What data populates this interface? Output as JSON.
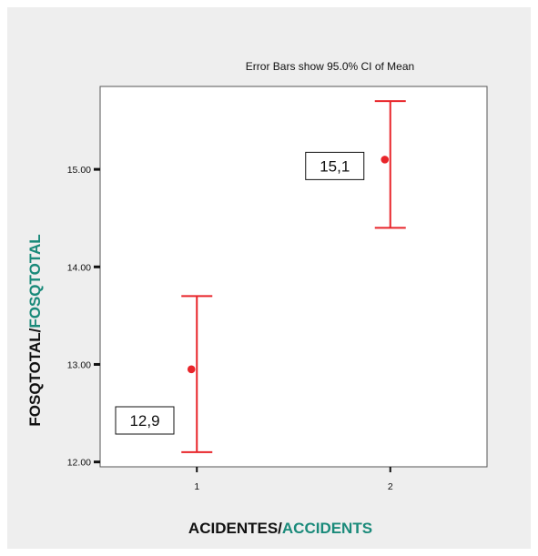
{
  "chart_data": {
    "type": "errorbar",
    "note": "Error Bars show 95.0% CI of Mean",
    "xlabel": {
      "part1": "ACIDENTES/",
      "part2": "ACCIDENTS"
    },
    "ylabel": {
      "part1": "FOSQTOTAL/",
      "part2": "FOSQTOTAL"
    },
    "categories": [
      "1",
      "2"
    ],
    "ylim": [
      11.95,
      15.85
    ],
    "yticks": [
      12.0,
      13.0,
      14.0,
      15.0
    ],
    "ytick_labels": [
      "12.00",
      "13.00",
      "14.00",
      "15.00"
    ],
    "points": [
      {
        "x": "1",
        "mean": 12.95,
        "lower": 12.1,
        "upper": 13.7,
        "label": "12,9"
      },
      {
        "x": "2",
        "mean": 15.1,
        "lower": 14.4,
        "upper": 15.7,
        "label": "15,1"
      }
    ],
    "colors": {
      "marks": "#e8252a",
      "accent_label": "#1a8a7a",
      "dark_label": "#111111"
    }
  }
}
